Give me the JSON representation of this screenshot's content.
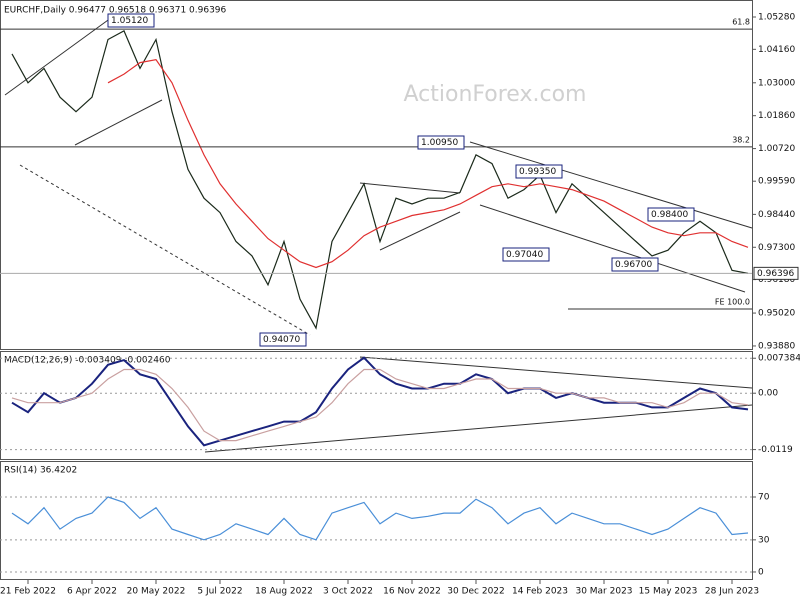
{
  "chart_data": [
    {
      "type": "line",
      "title": "EURCHF,Daily  0.96477 0.96518 0.96371 0.96396",
      "watermark": "ActionForex.com",
      "categories": [
        null,
        "21 Feb 2022",
        null,
        null,
        null,
        "6 Apr 2022",
        null,
        null,
        null,
        "20 May 2022",
        null,
        null,
        null,
        "5 Jul 2022",
        null,
        null,
        null,
        "18 Aug 2022",
        null,
        null,
        null,
        "3 Oct 2022",
        null,
        null,
        null,
        "16 Nov 2022",
        null,
        null,
        null,
        "30 Dec 2022",
        null,
        null,
        null,
        "14 Feb 2023",
        null,
        null,
        null,
        "30 Mar 2023",
        null,
        null,
        null,
        "15 May 2023",
        null,
        null,
        null,
        "28 Jun 2023",
        null
      ],
      "series": [
        {
          "color": "#1b2a1b",
          "values": [
            1.04,
            1.03,
            1.035,
            1.025,
            1.02,
            1.025,
            1.045,
            1.048,
            1.035,
            1.045,
            1.02,
            1.0,
            0.99,
            0.985,
            0.975,
            0.97,
            0.96,
            0.975,
            0.955,
            0.945,
            0.975,
            0.985,
            0.995,
            0.975,
            0.99,
            0.988,
            0.99,
            0.99,
            0.992,
            1.005,
            1.002,
            0.99,
            0.993,
            0.998,
            0.985,
            0.995,
            0.99,
            0.985,
            0.98,
            0.975,
            0.97,
            0.972,
            0.978,
            0.982,
            0.978,
            0.965,
            0.96396
          ]
        },
        {
          "color": "#e03030",
          "values": [
            null,
            null,
            null,
            null,
            null,
            null,
            1.03,
            1.033,
            1.037,
            1.038,
            1.03,
            1.017,
            1.005,
            0.995,
            0.988,
            0.982,
            0.976,
            0.972,
            0.968,
            0.966,
            0.968,
            0.972,
            0.977,
            0.98,
            0.982,
            0.984,
            0.985,
            0.986,
            0.988,
            0.991,
            0.994,
            0.995,
            0.994,
            0.995,
            0.994,
            0.993,
            0.991,
            0.989,
            0.986,
            0.983,
            0.98,
            0.978,
            0.977,
            0.978,
            0.978,
            0.975,
            0.973
          ]
        }
      ],
      "ylim": [
        0.9374,
        1.058
      ],
      "yticks": [
        {
          "value": 1.0528,
          "label": "1.05280"
        },
        {
          "value": 1.0416,
          "label": "1.04160"
        },
        {
          "value": 1.03,
          "label": "1.03000"
        },
        {
          "value": 1.0186,
          "label": "1.01860"
        },
        {
          "value": 1.0072,
          "label": "1.00720"
        },
        {
          "value": 0.9959,
          "label": "0.99590"
        },
        {
          "value": 0.9844,
          "label": "0.98440"
        },
        {
          "value": 0.973,
          "label": "0.97300"
        },
        {
          "value": 0.9618,
          "label": "0.96180"
        },
        {
          "value": 0.9502,
          "label": "0.95020"
        },
        {
          "value": 0.9388,
          "label": "0.93880"
        }
      ],
      "current": {
        "value": 0.96396,
        "label": "0.96396"
      },
      "levels": [
        {
          "label": "61.8",
          "value": 1.0486
        },
        {
          "label": "38.2",
          "value": 1.0078
        },
        {
          "label": "FE 100.0",
          "value": 0.9516
        }
      ],
      "annotations": [
        "1.05120",
        "1.00950",
        "0.99350",
        "0.98400",
        "0.97040",
        "0.96700",
        "0.94070"
      ]
    },
    {
      "type": "line",
      "title": "MACD(12,26,9) -0.003409 -0.002460",
      "series": [
        {
          "color": "#1a237e",
          "values": [
            -0.002,
            -0.004,
            0.0,
            -0.002,
            -0.001,
            0.002,
            0.006,
            0.007,
            0.004,
            0.003,
            -0.002,
            -0.007,
            -0.011,
            -0.01,
            -0.009,
            -0.008,
            -0.007,
            -0.006,
            -0.006,
            -0.004,
            0.001,
            0.005,
            0.0075,
            0.004,
            0.002,
            0.001,
            0.001,
            0.002,
            0.002,
            0.004,
            0.003,
            0.0,
            0.001,
            0.001,
            -0.001,
            0.0,
            -0.001,
            -0.002,
            -0.002,
            -0.002,
            -0.003,
            -0.003,
            -0.001,
            0.001,
            0.0,
            -0.003,
            -0.003409
          ]
        },
        {
          "color": "#c9a0a0",
          "values": [
            -0.001,
            -0.002,
            -0.002,
            -0.002,
            -0.001,
            0.0,
            0.003,
            0.005,
            0.005,
            0.004,
            0.001,
            -0.003,
            -0.008,
            -0.01,
            -0.01,
            -0.009,
            -0.008,
            -0.007,
            -0.006,
            -0.005,
            -0.002,
            0.002,
            0.005,
            0.005,
            0.003,
            0.002,
            0.001,
            0.001,
            0.002,
            0.003,
            0.003,
            0.001,
            0.001,
            0.001,
            0.0,
            0.0,
            -0.001,
            -0.001,
            -0.002,
            -0.002,
            -0.002,
            -0.003,
            -0.002,
            0.0,
            0.0,
            -0.002,
            -0.00246
          ]
        }
      ],
      "ylim": [
        -0.0141,
        0.0087
      ],
      "yticks": [
        0.007384,
        {
          "value": 0,
          "label": "0.00"
        },
        -0.0119
      ]
    },
    {
      "type": "line",
      "title": "RSI(14) 36.4202",
      "series": [
        {
          "color": "#4a8fd8",
          "values": [
            55,
            45,
            60,
            40,
            50,
            55,
            70,
            65,
            50,
            60,
            40,
            35,
            30,
            35,
            45,
            40,
            35,
            50,
            35,
            30,
            55,
            60,
            65,
            45,
            55,
            50,
            52,
            55,
            55,
            68,
            60,
            45,
            55,
            60,
            45,
            55,
            50,
            45,
            45,
            40,
            35,
            40,
            50,
            60,
            55,
            35,
            36.4202
          ]
        }
      ],
      "ylim": [
        -7.5,
        102.7
      ],
      "yticks": [
        70,
        30,
        0
      ]
    }
  ]
}
